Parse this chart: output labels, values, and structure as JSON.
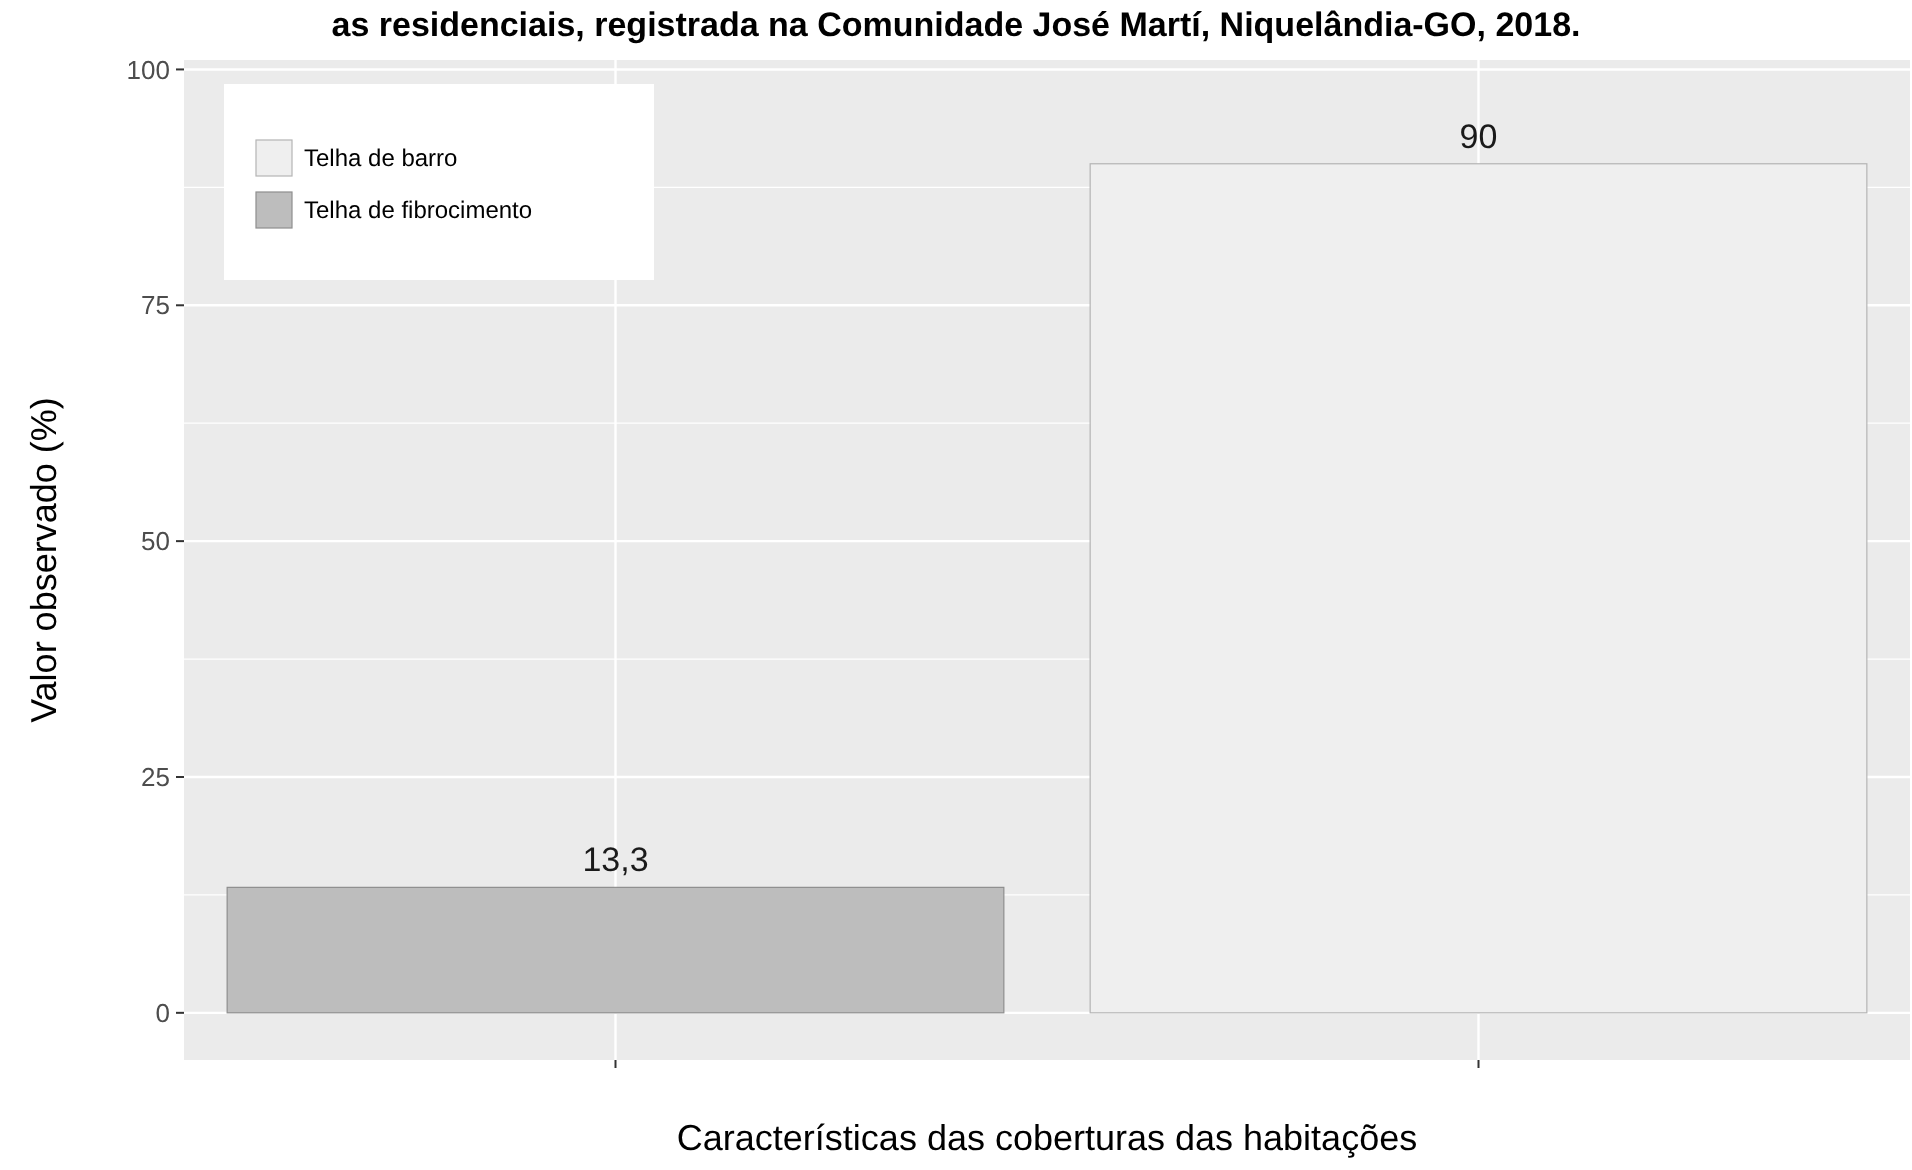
{
  "chart_data": {
    "type": "bar",
    "title": "as residenciais, registrada na Comunidade José Martí, Niquelândia-GO, 2018.",
    "xlabel": "Características das coberturas das habitações",
    "ylabel": "Valor observado (%)",
    "categories": [
      null,
      null
    ],
    "series": [
      {
        "name": "Telha de barro",
        "color": "#efefef",
        "values": [
          null,
          90
        ],
        "value_labels": [
          null,
          "90"
        ]
      },
      {
        "name": "Telha de fibrocimento",
        "color": "#bdbdbd",
        "values": [
          13.3,
          null
        ],
        "value_labels": [
          "13,3",
          null
        ]
      }
    ],
    "ylim": [
      -5,
      101
    ],
    "yticks": [
      0,
      25,
      50,
      75,
      100
    ],
    "grid": true,
    "legend": "top left"
  }
}
